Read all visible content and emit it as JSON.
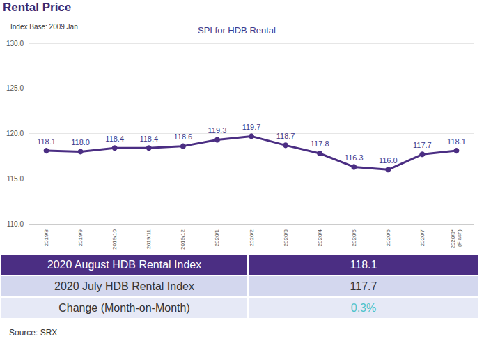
{
  "header": {
    "title": "Rental Price",
    "index_base": "Index Base: 2009 Jan"
  },
  "chart_data": {
    "type": "line",
    "title": "SPI for HDB Rental",
    "categories": [
      "2019/8",
      "2019/9",
      "2019/10",
      "2019/11",
      "2019/12",
      "2020/1",
      "2020/2",
      "2020/3",
      "2020/4",
      "2020/5",
      "2020/6",
      "2020/7",
      "2020/8* (Flash)"
    ],
    "values": [
      118.1,
      118.0,
      118.4,
      118.4,
      118.6,
      119.3,
      119.7,
      118.7,
      117.8,
      116.3,
      116.0,
      117.7,
      118.1
    ],
    "value_labels": [
      "118.1",
      "118.0",
      "118.4",
      "118.4",
      "118.6",
      "119.3",
      "119.7",
      "118.7",
      "117.8",
      "116.3",
      "116.0",
      "117.7",
      "118.1"
    ],
    "color": "#4b2e83",
    "marker": "circle",
    "ylim": [
      110,
      130
    ],
    "yticks": [
      {
        "value": 110,
        "label": "110.0"
      },
      {
        "value": 115,
        "label": "115.0"
      },
      {
        "value": 120,
        "label": "120.0"
      },
      {
        "value": 125,
        "label": "125.0"
      },
      {
        "value": 130,
        "label": "130.0"
      }
    ],
    "grid": true,
    "data_labels": true
  },
  "table": {
    "rows": [
      [
        "2020 August HDB Rental Index",
        "118.1"
      ],
      [
        "2020 July HDB Rental Index",
        "117.7"
      ],
      [
        "Change (Month-on-Month)",
        "0.3%"
      ]
    ]
  },
  "source": "Source: SRX"
}
